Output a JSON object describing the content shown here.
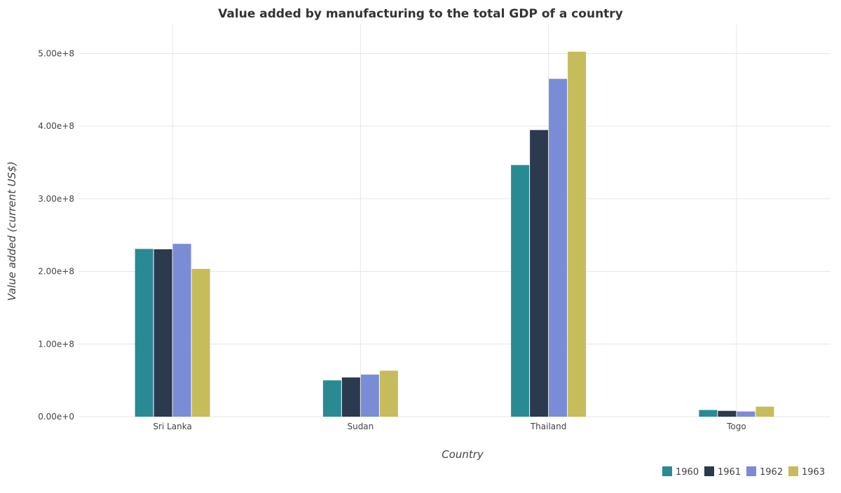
{
  "chart_data": {
    "type": "bar",
    "title": "Value added by manufacturing to the total GDP of a country",
    "xlabel": "Country",
    "ylabel": "Value added (current US$)",
    "categories": [
      "Sri Lanka",
      "Sudan",
      "Thailand",
      "Togo"
    ],
    "series": [
      {
        "name": "1960",
        "color": "#2a8a94",
        "values": [
          231000000,
          50000000,
          346500000,
          9200000
        ]
      },
      {
        "name": "1961",
        "color": "#2b3a4e",
        "values": [
          230500000,
          54000000,
          394700000,
          8000000
        ]
      },
      {
        "name": "1962",
        "color": "#7b8cd6",
        "values": [
          238000000,
          58000000,
          465200000,
          7200000
        ]
      },
      {
        "name": "1963",
        "color": "#c6bc5b",
        "values": [
          203500000,
          63300000,
          502600000,
          13800000
        ]
      }
    ],
    "ylim": [
      0,
      540000000
    ],
    "yticks": [
      0,
      100000000,
      200000000,
      300000000,
      400000000,
      500000000
    ],
    "ytick_labels": [
      "0.00e+0",
      "1.00e+8",
      "2.00e+8",
      "3.00e+8",
      "4.00e+8",
      "5.00e+8"
    ],
    "grid": true,
    "legend_position": "bottom-right"
  }
}
